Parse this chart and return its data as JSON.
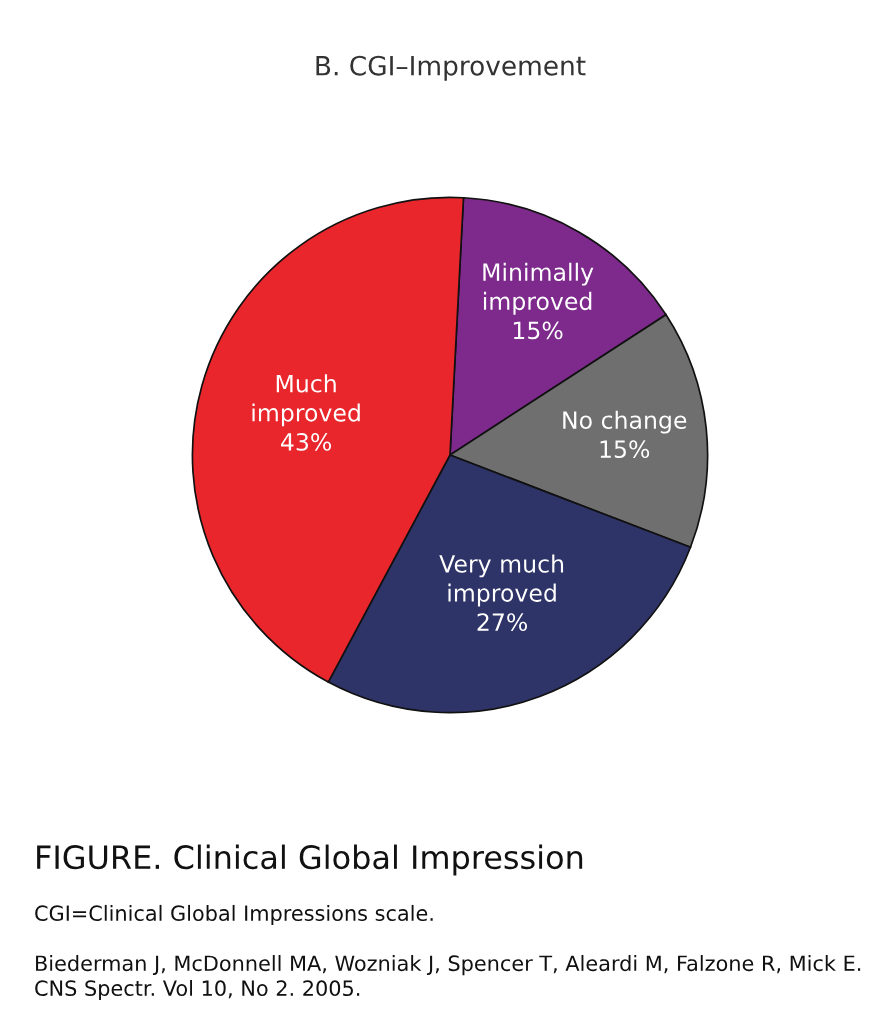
{
  "chart_data": {
    "type": "pie",
    "title": "B. CGI–Improvement",
    "categories": [
      "Minimally\nimproved",
      "No change",
      "Very much\nimproved",
      "Much\nimproved"
    ],
    "values": [
      15,
      15,
      27,
      43
    ],
    "colors": [
      "#7d2a8c",
      "#6f6f6f",
      "#2f3468",
      "#e8262b"
    ],
    "value_labels": [
      "15%",
      "15%",
      "27%",
      "43%"
    ],
    "annotations": [
      "FIGURE. Clinical Global Impression",
      "CGI=Clinical Global Impressions scale.",
      "Biederman J, McDonnell MA, Wozniak J, Spencer T, Aleardi M, Falzone R, Mick E. CNS Spectr. Vol 10, No 2. 2005."
    ]
  }
}
